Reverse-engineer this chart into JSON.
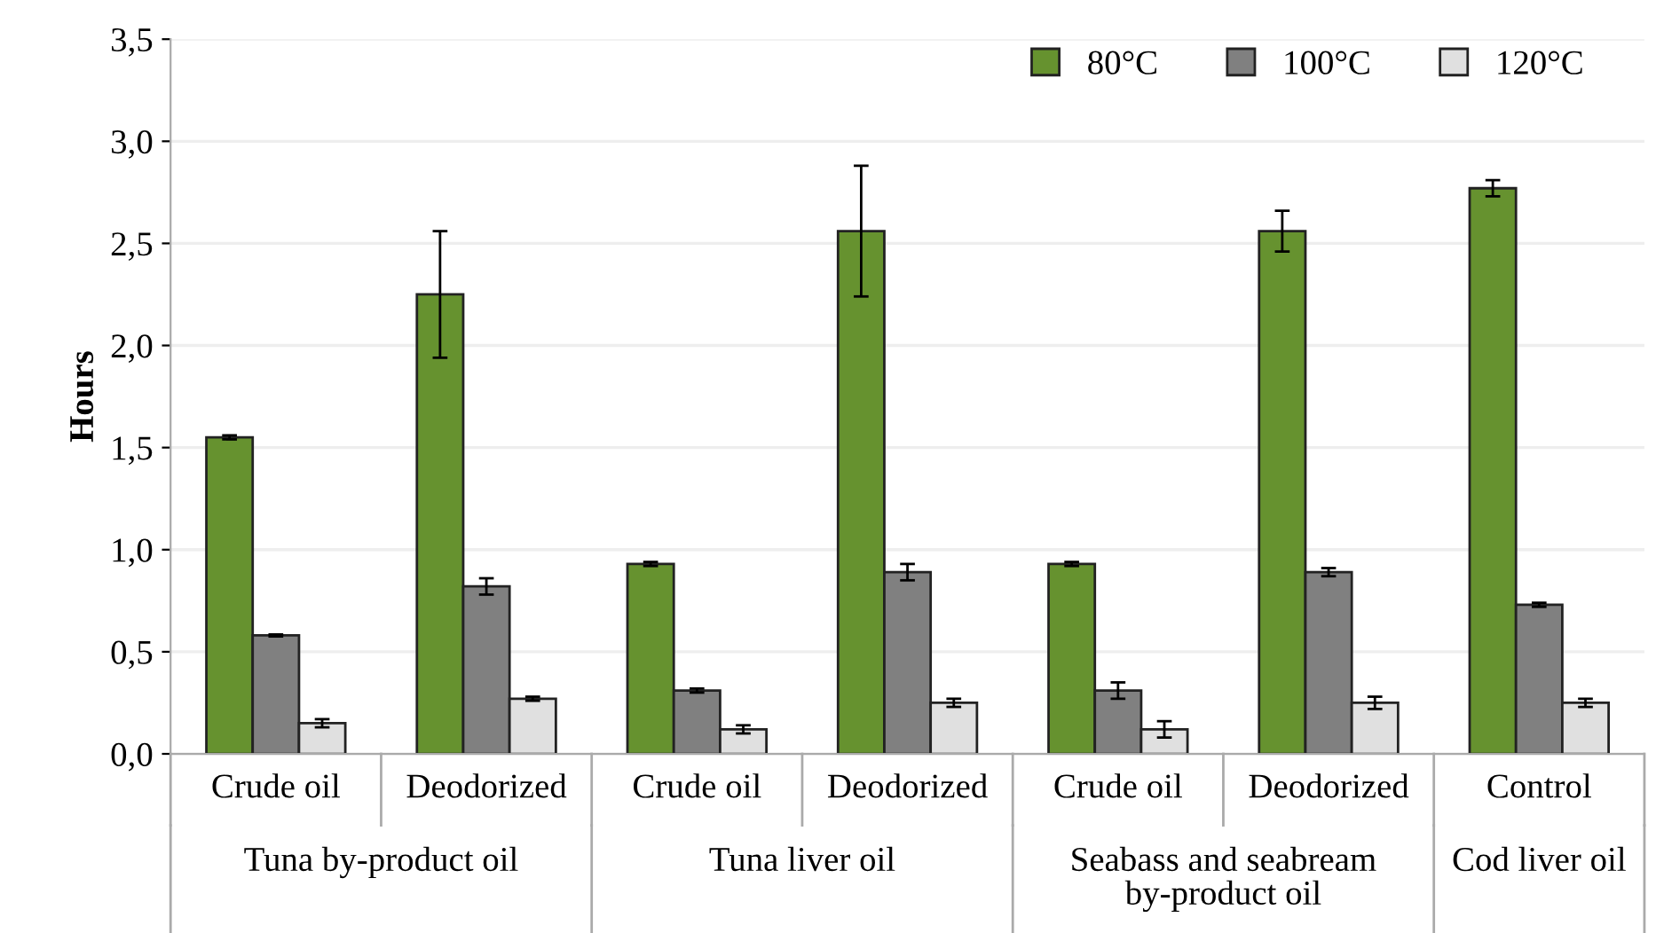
{
  "chart_data": {
    "type": "bar",
    "ylabel": "Hours",
    "categories": [
      "Crude oil",
      "Deodorized",
      "Crude oil",
      "Deodorized",
      "Crude oil",
      "Deodorized",
      "Control"
    ],
    "series": [
      {
        "name": "80°C",
        "color": "#66922f",
        "values": [
          1.55,
          2.25,
          0.93,
          2.56,
          0.93,
          2.56,
          2.77
        ],
        "errors": [
          0.01,
          0.31,
          0.01,
          0.32,
          0.01,
          0.1,
          0.04
        ]
      },
      {
        "name": "100°C",
        "color": "#808080",
        "values": [
          0.58,
          0.82,
          0.31,
          0.89,
          0.31,
          0.89,
          0.73
        ],
        "errors": [
          0.005,
          0.04,
          0.01,
          0.04,
          0.04,
          0.02,
          0.01
        ]
      },
      {
        "name": "120°C",
        "color": "#e0e0e0",
        "values": [
          0.15,
          0.27,
          0.12,
          0.25,
          0.12,
          0.25,
          0.25
        ],
        "errors": [
          0.02,
          0.01,
          0.02,
          0.02,
          0.04,
          0.03,
          0.02
        ]
      }
    ],
    "ylim": [
      0,
      3.5
    ],
    "yticks": [
      {
        "value": 0,
        "label": "0,0"
      },
      {
        "value": 0.5,
        "label": "0,5"
      },
      {
        "value": 1,
        "label": "1,0"
      },
      {
        "value": 1.5,
        "label": "1,5"
      },
      {
        "value": 2,
        "label": "2,0"
      },
      {
        "value": 2.5,
        "label": "2,5"
      },
      {
        "value": 3,
        "label": "3,0"
      },
      {
        "value": 3.5,
        "label": "3,5"
      }
    ],
    "annotations": [
      "Tuna by-product oil",
      "Tuna liver oil",
      "Seabass and seabream by-product oil",
      "Cod liver oil"
    ],
    "grid": "y",
    "legend": "top right"
  }
}
